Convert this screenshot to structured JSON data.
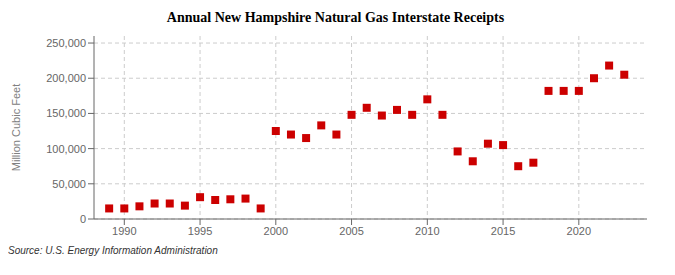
{
  "chart_data": {
    "type": "scatter",
    "title": "Annual New Hampshire Natural Gas Interstate Receipts",
    "y_label": "Million Cubic Feet",
    "annotations": [
      "Source: U.S. Energy Information Administration"
    ],
    "x": [
      1989,
      1990,
      1991,
      1992,
      1993,
      1994,
      1995,
      1996,
      1997,
      1998,
      1999,
      2000,
      2001,
      2002,
      2003,
      2004,
      2005,
      2006,
      2007,
      2008,
      2009,
      2010,
      2011,
      2012,
      2013,
      2014,
      2015,
      2016,
      2017,
      2018,
      2019,
      2020,
      2021,
      2022,
      2023
    ],
    "values": [
      15000,
      15000,
      18000,
      22000,
      22000,
      19000,
      31000,
      27000,
      28000,
      29000,
      15000,
      125000,
      120000,
      115000,
      133000,
      120000,
      148000,
      158000,
      147000,
      155000,
      148000,
      170000,
      148000,
      96000,
      82000,
      107000,
      105000,
      75000,
      80000,
      182000,
      182000,
      182000,
      200000,
      218000,
      205000
    ],
    "color": "#cc0000",
    "marker": "square",
    "xlim": [
      1988,
      2024.5
    ],
    "xticks": [
      1990,
      1995,
      2000,
      2005,
      2010,
      2015,
      2020
    ],
    "ylim": [
      0,
      260000
    ],
    "yticks": [
      0,
      {
        "value": 50000,
        "label": "50,000"
      },
      {
        "value": 100000,
        "label": "100,000"
      },
      {
        "value": 150000,
        "label": "150,000"
      },
      {
        "value": 200000,
        "label": "200,000"
      },
      {
        "value": 250000,
        "label": "250,000"
      }
    ],
    "grid": true
  }
}
